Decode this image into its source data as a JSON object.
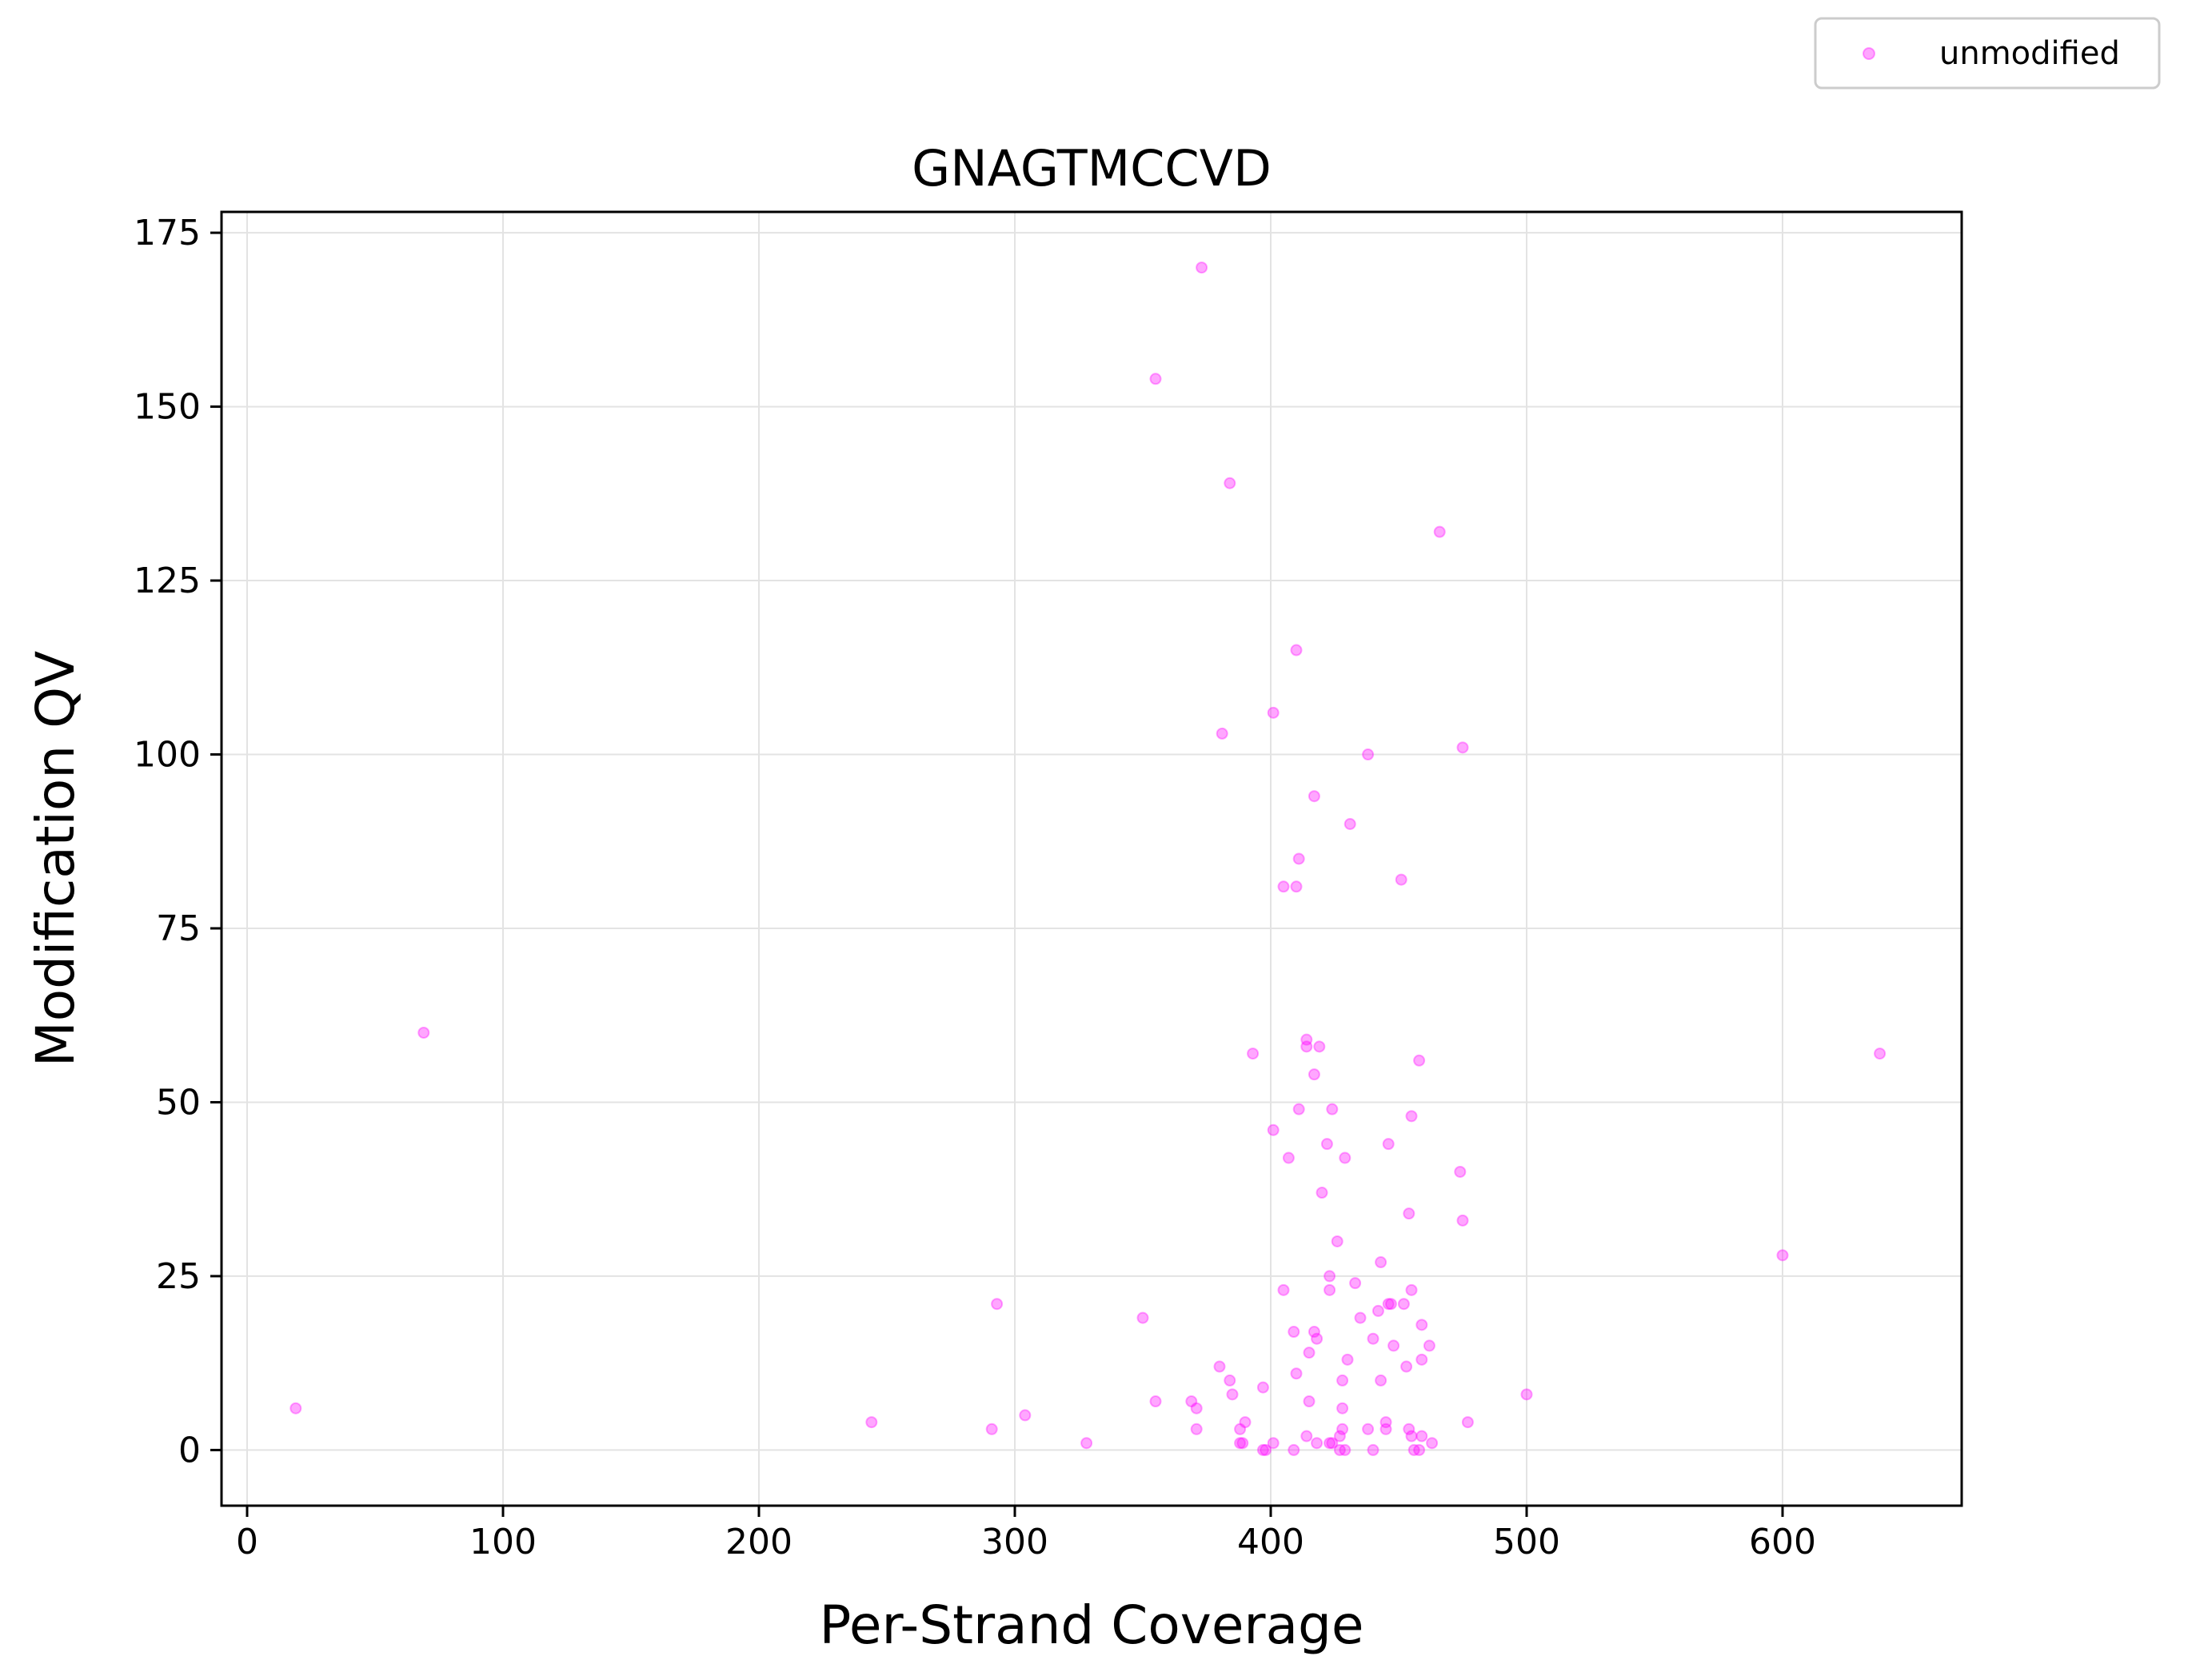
{
  "chart_data": {
    "type": "scatter",
    "title": "GNAGTMCCVD",
    "xlabel": "Per-Strand Coverage",
    "ylabel": "Modification QV",
    "xlim": [
      -10,
      670
    ],
    "ylim": [
      -8,
      178
    ],
    "xticks": [
      0,
      100,
      200,
      300,
      400,
      500,
      600
    ],
    "yticks": [
      0,
      25,
      50,
      75,
      100,
      125,
      150,
      175
    ],
    "grid": true,
    "legend_position": "top-right, outside plot",
    "series": [
      {
        "name": "unmodified",
        "color": "#ff00ff",
        "points": [
          [
            19,
            6
          ],
          [
            69,
            60
          ],
          [
            244,
            4
          ],
          [
            291,
            3
          ],
          [
            293,
            21
          ],
          [
            304,
            5
          ],
          [
            328,
            1
          ],
          [
            350,
            19
          ],
          [
            355,
            7
          ],
          [
            355,
            154
          ],
          [
            369,
            7
          ],
          [
            371,
            6
          ],
          [
            371,
            3
          ],
          [
            373,
            170
          ],
          [
            380,
            12
          ],
          [
            381,
            103
          ],
          [
            384,
            139
          ],
          [
            384,
            10
          ],
          [
            385,
            8
          ],
          [
            388,
            3
          ],
          [
            388,
            1
          ],
          [
            389,
            1
          ],
          [
            390,
            4
          ],
          [
            393,
            57
          ],
          [
            397,
            9
          ],
          [
            397,
            0
          ],
          [
            398,
            0
          ],
          [
            401,
            106
          ],
          [
            401,
            46
          ],
          [
            401,
            1
          ],
          [
            405,
            81
          ],
          [
            405,
            23
          ],
          [
            407,
            42
          ],
          [
            409,
            17
          ],
          [
            409,
            0
          ],
          [
            410,
            115
          ],
          [
            410,
            81
          ],
          [
            410,
            11
          ],
          [
            411,
            85
          ],
          [
            411,
            49
          ],
          [
            414,
            59
          ],
          [
            414,
            58
          ],
          [
            414,
            2
          ],
          [
            415,
            14
          ],
          [
            415,
            7
          ],
          [
            417,
            94
          ],
          [
            417,
            54
          ],
          [
            417,
            17
          ],
          [
            418,
            16
          ],
          [
            418,
            1
          ],
          [
            419,
            58
          ],
          [
            420,
            37
          ],
          [
            422,
            44
          ],
          [
            423,
            25
          ],
          [
            423,
            23
          ],
          [
            423,
            1
          ],
          [
            424,
            49
          ],
          [
            424,
            1
          ],
          [
            426,
            30
          ],
          [
            427,
            2
          ],
          [
            427,
            0
          ],
          [
            428,
            10
          ],
          [
            428,
            6
          ],
          [
            428,
            3
          ],
          [
            429,
            0
          ],
          [
            429,
            42
          ],
          [
            430,
            13
          ],
          [
            431,
            90
          ],
          [
            433,
            24
          ],
          [
            435,
            19
          ],
          [
            438,
            100
          ],
          [
            438,
            3
          ],
          [
            440,
            16
          ],
          [
            440,
            0
          ],
          [
            442,
            20
          ],
          [
            443,
            27
          ],
          [
            443,
            10
          ],
          [
            445,
            4
          ],
          [
            445,
            3
          ],
          [
            446,
            44
          ],
          [
            446,
            21
          ],
          [
            447,
            21
          ],
          [
            448,
            15
          ],
          [
            451,
            82
          ],
          [
            452,
            21
          ],
          [
            453,
            12
          ],
          [
            454,
            34
          ],
          [
            454,
            3
          ],
          [
            455,
            48
          ],
          [
            455,
            23
          ],
          [
            455,
            2
          ],
          [
            456,
            0
          ],
          [
            458,
            56
          ],
          [
            458,
            0
          ],
          [
            459,
            18
          ],
          [
            459,
            13
          ],
          [
            459,
            2
          ],
          [
            462,
            15
          ],
          [
            463,
            1
          ],
          [
            466,
            132
          ],
          [
            474,
            40
          ],
          [
            475,
            101
          ],
          [
            475,
            33
          ],
          [
            477,
            4
          ],
          [
            500,
            8
          ],
          [
            600,
            28
          ],
          [
            638,
            57
          ]
        ]
      }
    ]
  }
}
